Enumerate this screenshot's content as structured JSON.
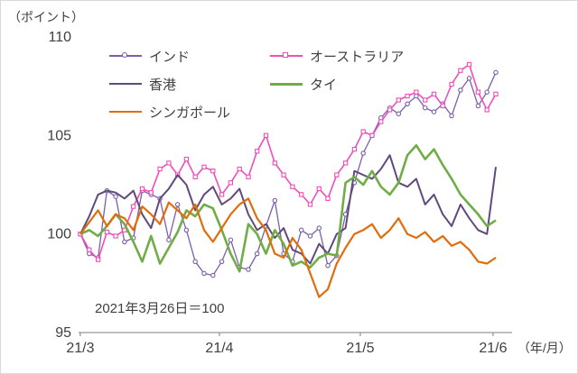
{
  "chart_data": {
    "type": "line",
    "title": "",
    "unit_label": "（ポイント）",
    "xaxis_unit_label": "（年/月）",
    "annotation": "2021年3月26日＝100",
    "ylim": [
      95,
      110
    ],
    "yticks": [
      95,
      100,
      105,
      110
    ],
    "grid": "off",
    "legend_position": "top-left-inset",
    "xticks": [
      {
        "label": "21/3",
        "pos": 0.004
      },
      {
        "label": "21/4",
        "pos": 0.325
      },
      {
        "label": "21/5",
        "pos": 0.65
      },
      {
        "label": "21/6",
        "pos": 0.956
      }
    ],
    "series": [
      {
        "name": "インド",
        "color": "#7B5FA8",
        "marker": "circle",
        "width": 1.3,
        "values": [
          100.0,
          99.0,
          98.8,
          102.2,
          101.9,
          99.6,
          99.8,
          102.2,
          102.0,
          101.8,
          99.7,
          101.5,
          100.2,
          98.6,
          98.0,
          97.9,
          98.6,
          99.7,
          98.3,
          98.2,
          99.0,
          100.4,
          101.7,
          99.0,
          98.6,
          100.2,
          99.9,
          100.3,
          98.4,
          98.9,
          101.0,
          102.6,
          104.1,
          105.0,
          105.9,
          106.4,
          106.1,
          106.6,
          107.0,
          106.4,
          106.2,
          106.6,
          106.0,
          107.3,
          107.9,
          106.5,
          107.2,
          108.2
        ]
      },
      {
        "name": "オーストラリア",
        "color": "#EE4FB8",
        "marker": "square",
        "width": 1.6,
        "values": [
          100.0,
          99.2,
          98.7,
          100.1,
          99.9,
          100.2,
          101.4,
          102.3,
          102.1,
          103.3,
          103.6,
          103.0,
          103.8,
          102.9,
          103.4,
          103.2,
          102.0,
          102.6,
          103.3,
          102.9,
          104.2,
          105.0,
          103.6,
          103.0,
          102.4,
          102.0,
          101.5,
          102.3,
          101.8,
          103.0,
          103.6,
          104.3,
          105.2,
          105.0,
          105.7,
          106.3,
          106.8,
          107.0,
          107.2,
          106.8,
          107.1,
          106.5,
          107.6,
          108.3,
          108.6,
          107.2,
          106.3,
          107.1
        ]
      },
      {
        "name": "香港",
        "color": "#604A7B",
        "marker": "none",
        "width": 2.0,
        "values": [
          100.0,
          100.9,
          102.0,
          102.2,
          102.1,
          101.8,
          102.2,
          101.0,
          100.3,
          101.8,
          102.3,
          103.0,
          102.5,
          101.2,
          102.0,
          102.4,
          101.5,
          101.8,
          102.3,
          101.0,
          100.2,
          100.5,
          99.8,
          100.3,
          99.2,
          99.0,
          98.5,
          99.5,
          99.0,
          100.0,
          100.3,
          103.2,
          103.0,
          102.8,
          103.3,
          104.0,
          102.6,
          102.4,
          102.8,
          101.5,
          102.0,
          101.0,
          100.4,
          101.5,
          100.8,
          100.2,
          100.0,
          103.4
        ]
      },
      {
        "name": "タイ",
        "color": "#70AD47",
        "marker": "none",
        "width": 2.6,
        "values": [
          100.0,
          100.2,
          99.9,
          100.4,
          101.0,
          100.5,
          99.6,
          98.6,
          99.9,
          98.5,
          99.3,
          100.1,
          101.2,
          100.9,
          101.5,
          101.3,
          100.2,
          99.0,
          98.1,
          100.5,
          100.0,
          99.0,
          100.2,
          99.5,
          98.4,
          98.6,
          98.3,
          98.8,
          99.0,
          98.9,
          102.6,
          102.9,
          102.5,
          103.2,
          102.4,
          102.0,
          102.6,
          104.0,
          104.5,
          103.8,
          104.3,
          103.5,
          102.8,
          102.0,
          101.5,
          101.0,
          100.4,
          100.7
        ]
      },
      {
        "name": "シンガポール",
        "color": "#E36C0A",
        "marker": "none",
        "width": 2.2,
        "values": [
          100.0,
          100.6,
          101.2,
          100.4,
          101.0,
          100.8,
          100.2,
          101.4,
          101.0,
          100.5,
          101.6,
          101.2,
          100.8,
          101.5,
          100.2,
          99.6,
          100.3,
          101.0,
          101.5,
          101.8,
          100.8,
          100.2,
          99.0,
          98.8,
          99.8,
          99.2,
          98.0,
          96.8,
          97.2,
          98.5,
          99.3,
          100.0,
          100.2,
          100.5,
          99.8,
          100.2,
          100.8,
          100.0,
          99.8,
          100.1,
          99.6,
          99.9,
          99.4,
          99.6,
          99.2,
          98.6,
          98.5,
          98.8
        ]
      }
    ]
  }
}
